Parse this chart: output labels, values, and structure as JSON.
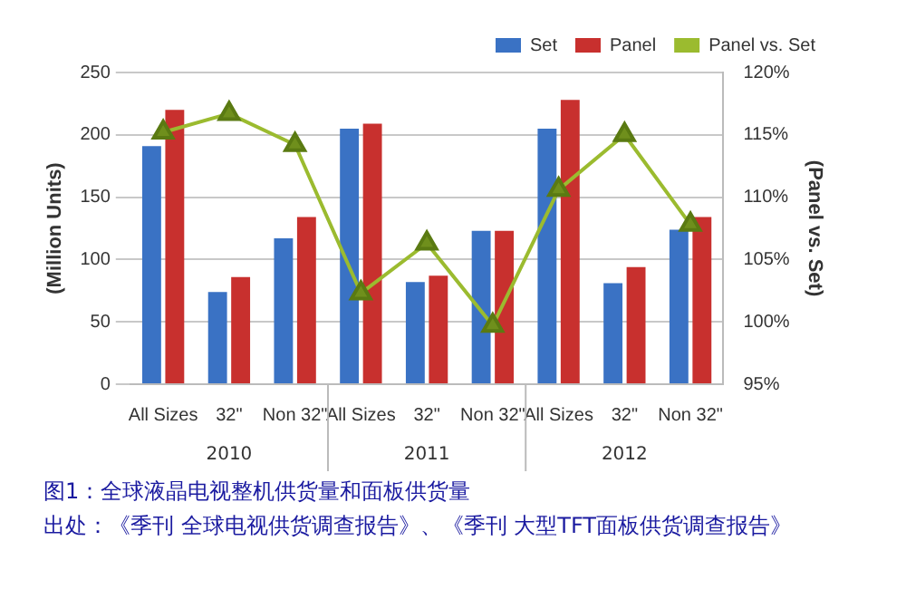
{
  "chart_data": {
    "type": "bar",
    "title": "图1：全球液晶电视整机供货量和面板供货量",
    "categories": [
      "All Sizes",
      "32\"",
      "Non 32\"",
      "All Sizes",
      "32\"",
      "Non 32\"",
      "All Sizes",
      "32\"",
      "Non 32\""
    ],
    "series": [
      {
        "name": "Set",
        "color": "#3a72c4",
        "values": [
          191,
          74,
          117,
          205,
          82,
          123,
          205,
          81,
          124
        ]
      },
      {
        "name": "Panel",
        "color": "#c8302e",
        "values": [
          220,
          86,
          134,
          209,
          87,
          123,
          228,
          94,
          134
        ]
      },
      {
        "name": "Panel vs. Set",
        "type": "line",
        "axis": "y2",
        "color": "#9bbb2f",
        "values": [
          115.2,
          116.7,
          114.2,
          102.3,
          106.3,
          99.7,
          110.6,
          115.0,
          107.8
        ]
      }
    ],
    "ylabel": "(Million Units)",
    "y2label": "(Panel vs. Set)",
    "ylim": [
      0,
      250
    ],
    "yticks": [
      0,
      50,
      100,
      150,
      200,
      250
    ],
    "y2lim": [
      95,
      120
    ],
    "y2ticks": [
      {
        "value": 95,
        "label": "95%"
      },
      {
        "value": 100,
        "label": "100%"
      },
      {
        "value": 105,
        "label": "105%"
      },
      {
        "value": 110,
        "label": "110%"
      },
      {
        "value": 115,
        "label": "115%"
      },
      {
        "value": 120,
        "label": "120%"
      }
    ],
    "grid": "y",
    "legend": "top right",
    "marker": "triangle",
    "annotations": [
      "2010",
      "2011",
      "2012",
      "出处：《季刊 全球电视供货调查报告》、《季刊 大型TFT面板供货调查报告》"
    ]
  }
}
